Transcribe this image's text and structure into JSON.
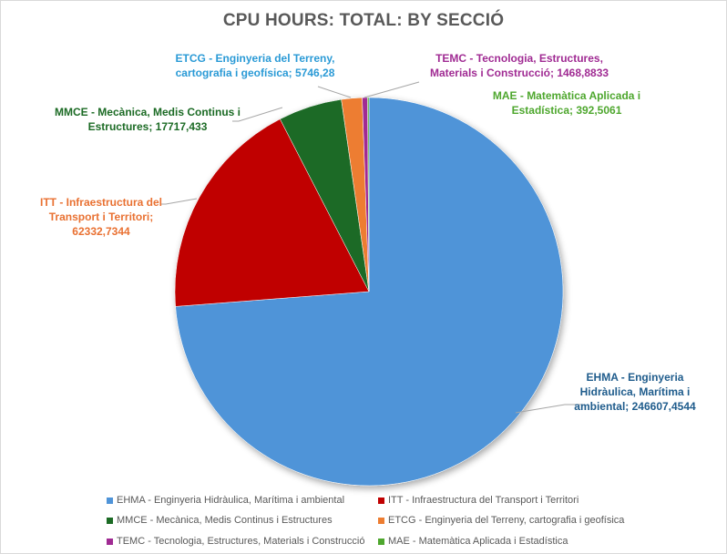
{
  "chart_data": {
    "type": "pie",
    "title": "CPU HOURS: TOTAL: BY SECCIÓ",
    "start_angle_deg": 0,
    "direction": "clockwise",
    "legend_position": "bottom",
    "categories": [
      "EHMA - Enginyeria Hidràulica, Marítima i ambiental",
      "ITT - Infraestructura del Transport i Territori",
      "MMCE - Mecànica, Medis Continus i Estructures",
      "ETCG - Enginyeria del Terreny, cartografia i geofísica",
      "TEMC - Tecnologia, Estructures, Materials i Construcció",
      "MAE - Matemàtica Aplicada i Estadística"
    ],
    "values": [
      246607.4544,
      62332.7344,
      17717.433,
      5746.28,
      1468.8833,
      392.5061
    ],
    "value_labels": [
      "246607,4544",
      "62332,7344",
      "17717,433",
      "5746,28",
      "1468,8833",
      "392,5061"
    ],
    "colors": [
      "#4f94d8",
      "#c00000",
      "#1c6b25",
      "#ed7d31",
      "#a02b93",
      "#4ea72e"
    ]
  },
  "data_labels": [
    {
      "lines": [
        "EHMA - Enginyeria",
        "Hidràulica,  Marítima  i",
        "ambiental;  246607,4544"
      ],
      "color": "#1f5c8c"
    },
    {
      "lines": [
        "ITT - Infraestructura  del",
        "Transport i Territori;",
        "62332,7344"
      ],
      "color": "#e97132"
    },
    {
      "lines": [
        "MMCE - Mecànica,  Medis Continus i",
        "Estructures;  17717,433"
      ],
      "color": "#1c6b25"
    },
    {
      "lines": [
        "ETCG - Enginyeria del Terreny,",
        "cartografia   i geofísica;  5746,28"
      ],
      "color": "#2a9ad6"
    },
    {
      "lines": [
        "TEMC - Tecnologia,  Estructures,",
        "Materials i Construcció;  1468,8833"
      ],
      "color": "#a02b93"
    },
    {
      "lines": [
        "MAE - Matemàtica  Aplicada  i",
        "Estadística;  392,5061"
      ],
      "color": "#4ea72e"
    }
  ],
  "legend": [
    {
      "label": "EHMA - Enginyeria Hidràulica, Marítima i ambiental",
      "color": "#4f94d8"
    },
    {
      "label": "ITT - Infraestructura del Transport i Territori",
      "color": "#c00000"
    },
    {
      "label": "MMCE - Mecànica, Medis Continus i Estructures",
      "color": "#1c6b25"
    },
    {
      "label": "ETCG - Enginyeria del Terreny, cartografia i geofísica",
      "color": "#ed7d31"
    },
    {
      "label": "TEMC - Tecnologia, Estructures, Materials i Construcció",
      "color": "#a02b93"
    },
    {
      "label": "MAE - Matemàtica Aplicada i Estadística",
      "color": "#4ea72e"
    }
  ]
}
